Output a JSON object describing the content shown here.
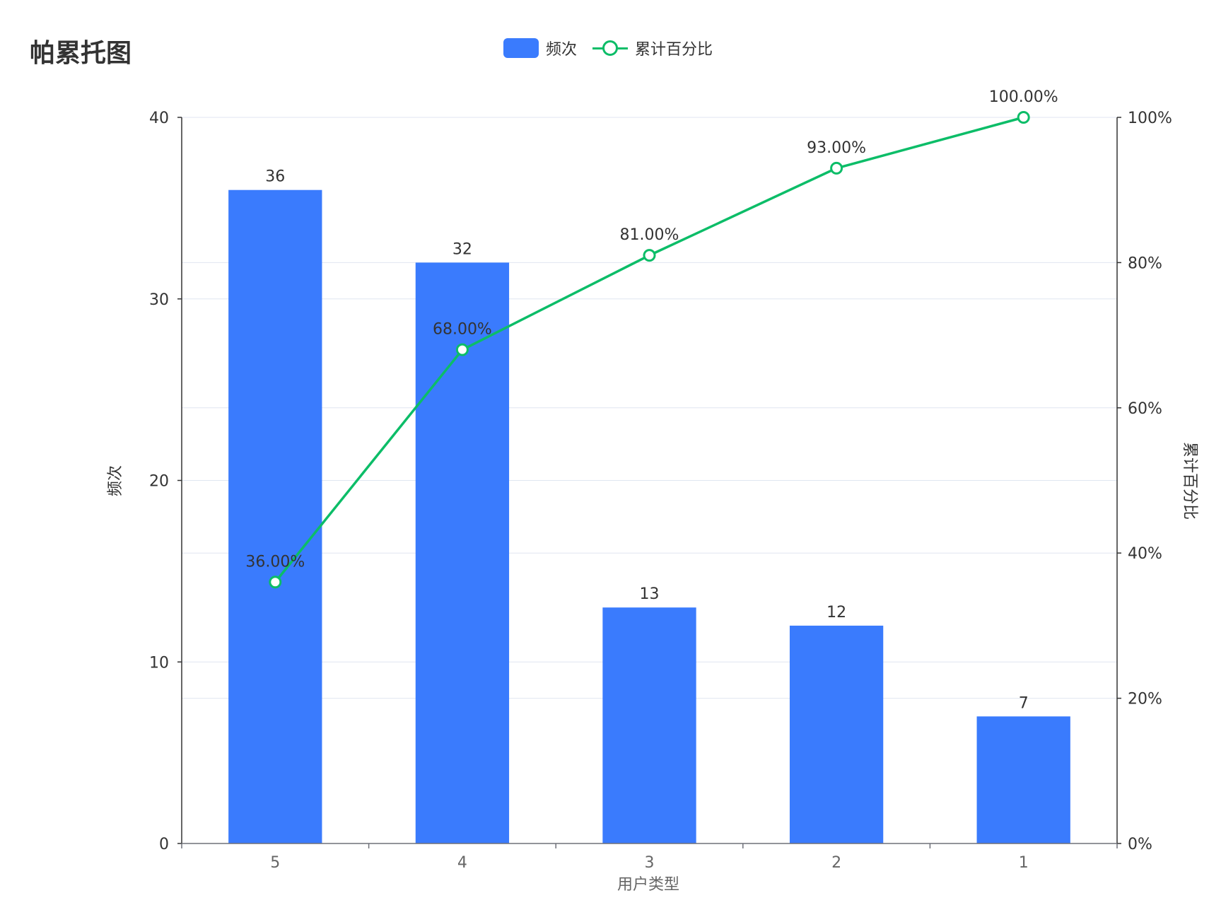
{
  "chart_data": {
    "type": "bar",
    "title": "帕累托图",
    "xlabel": "用户类型",
    "ylabel": "频次",
    "y2label": "累计百分比",
    "categories": [
      "5",
      "4",
      "3",
      "2",
      "1"
    ],
    "series": [
      {
        "name": "频次",
        "type": "bar",
        "axis": "left",
        "values": [
          36,
          32,
          13,
          12,
          7
        ],
        "labels": [
          "36",
          "32",
          "13",
          "12",
          "7"
        ],
        "color": "#3a7bfd"
      },
      {
        "name": "累计百分比",
        "type": "line",
        "axis": "right",
        "values": [
          36,
          68,
          81,
          93,
          100
        ],
        "labels": [
          "36.00%",
          "68.00%",
          "81.00%",
          "93.00%",
          "100.00%"
        ],
        "color": "#0cbd68"
      }
    ],
    "ylim": [
      0,
      40
    ],
    "yticks": [
      "0",
      "10",
      "20",
      "30",
      "40"
    ],
    "y2lim": [
      0,
      100
    ],
    "y2ticks": [
      "0%",
      "20%",
      "40%",
      "60%",
      "80%",
      "100%"
    ],
    "grid": true,
    "legend": "top-center"
  }
}
